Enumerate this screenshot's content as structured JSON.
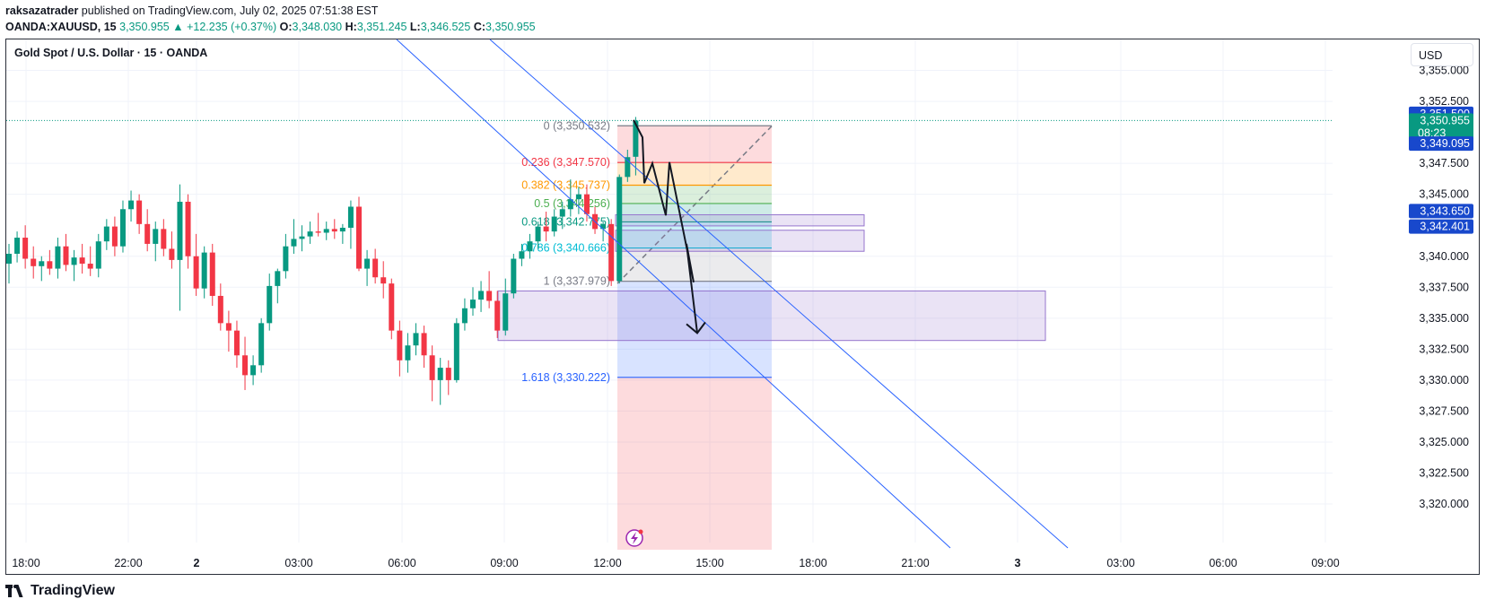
{
  "header": {
    "author": "raksazatrader",
    "published": "published on TradingView.com, July 02, 2025 07:51:38 EST"
  },
  "quote": {
    "symbol": "OANDA:XAUUSD, 15",
    "last": "3,350.955",
    "change": "▲ +12.235 (+0.37%)",
    "o_label": "O:",
    "o": "3,348.030",
    "h_label": "H:",
    "h": "3,351.245",
    "l_label": "L:",
    "l": "3,346.525",
    "c_label": "C:",
    "c": "3,350.955"
  },
  "chart_title": "Gold Spot / U.S. Dollar · 15 · OANDA",
  "currency": "USD",
  "footer": {
    "brand": "TradingView"
  },
  "colors": {
    "up": "#089981",
    "down": "#f23645",
    "trendline": "#2962ff",
    "zone": "#9575cd",
    "fib_red": "#f23645",
    "fib_orange": "#ff9800",
    "fib_green": "#4caf50",
    "fib_teal": "#089981",
    "fib_cyan": "#00bcd4",
    "fib_gray": "#787b86",
    "fib_blue": "#2962ff",
    "tag_blue": "#1848cc"
  },
  "chart_data": {
    "type": "candlestick",
    "y_ticks": [
      "3,355.000",
      "3,352.500",
      "3,347.500",
      "3,345.000",
      "3,340.000",
      "3,337.500",
      "3,335.000",
      "3,332.500",
      "3,330.000",
      "3,327.500",
      "3,325.000",
      "3,322.500",
      "3,320.000"
    ],
    "y_tick_values": [
      3355.0,
      3352.5,
      3347.5,
      3345.0,
      3340.0,
      3337.5,
      3335.0,
      3332.5,
      3330.0,
      3327.5,
      3325.0,
      3322.5,
      3320.0
    ],
    "ylim": [
      3318.7,
      3357.5
    ],
    "x_ticks": [
      {
        "label": "18:00",
        "bold": false
      },
      {
        "label": "22:00",
        "bold": false
      },
      {
        "label": "2",
        "bold": true
      },
      {
        "label": "03:00",
        "bold": false
      },
      {
        "label": "06:00",
        "bold": false
      },
      {
        "label": "09:00",
        "bold": false
      },
      {
        "label": "12:00",
        "bold": false
      },
      {
        "label": "15:00",
        "bold": false
      },
      {
        "label": "18:00",
        "bold": false
      },
      {
        "label": "21:00",
        "bold": false
      },
      {
        "label": "3",
        "bold": true
      },
      {
        "label": "03:00",
        "bold": false
      },
      {
        "label": "06:00",
        "bold": false
      },
      {
        "label": "09:00",
        "bold": false
      }
    ],
    "candles": [
      {
        "o": 3339.4,
        "h": 3341.0,
        "l": 3337.8,
        "c": 3340.2
      },
      {
        "o": 3340.2,
        "h": 3342.0,
        "l": 3339.5,
        "c": 3341.5
      },
      {
        "o": 3341.5,
        "h": 3342.5,
        "l": 3339.0,
        "c": 3339.8
      },
      {
        "o": 3339.8,
        "h": 3340.8,
        "l": 3338.2,
        "c": 3339.2
      },
      {
        "o": 3339.2,
        "h": 3340.0,
        "l": 3338.0,
        "c": 3339.6
      },
      {
        "o": 3339.6,
        "h": 3340.5,
        "l": 3338.5,
        "c": 3339.0
      },
      {
        "o": 3339.0,
        "h": 3341.5,
        "l": 3338.2,
        "c": 3340.8
      },
      {
        "o": 3340.8,
        "h": 3341.8,
        "l": 3338.8,
        "c": 3339.3
      },
      {
        "o": 3339.3,
        "h": 3340.5,
        "l": 3338.0,
        "c": 3339.9
      },
      {
        "o": 3339.9,
        "h": 3341.0,
        "l": 3338.6,
        "c": 3339.4
      },
      {
        "o": 3339.4,
        "h": 3340.8,
        "l": 3338.4,
        "c": 3339.0
      },
      {
        "o": 3339.0,
        "h": 3341.8,
        "l": 3338.3,
        "c": 3341.2
      },
      {
        "o": 3341.2,
        "h": 3343.0,
        "l": 3340.5,
        "c": 3342.4
      },
      {
        "o": 3342.4,
        "h": 3343.2,
        "l": 3340.0,
        "c": 3340.8
      },
      {
        "o": 3340.8,
        "h": 3344.5,
        "l": 3340.3,
        "c": 3343.8
      },
      {
        "o": 3343.8,
        "h": 3345.3,
        "l": 3342.8,
        "c": 3344.5
      },
      {
        "o": 3344.5,
        "h": 3345.0,
        "l": 3341.8,
        "c": 3342.6
      },
      {
        "o": 3342.6,
        "h": 3343.8,
        "l": 3340.4,
        "c": 3341.0
      },
      {
        "o": 3341.0,
        "h": 3342.8,
        "l": 3339.6,
        "c": 3342.2
      },
      {
        "o": 3342.2,
        "h": 3343.0,
        "l": 3340.0,
        "c": 3340.6
      },
      {
        "o": 3340.6,
        "h": 3342.0,
        "l": 3339.0,
        "c": 3339.7
      },
      {
        "o": 3339.7,
        "h": 3345.8,
        "l": 3335.6,
        "c": 3344.4
      },
      {
        "o": 3344.4,
        "h": 3345.0,
        "l": 3339.0,
        "c": 3340.0
      },
      {
        "o": 3340.0,
        "h": 3341.8,
        "l": 3336.8,
        "c": 3337.4
      },
      {
        "o": 3337.4,
        "h": 3340.8,
        "l": 3336.6,
        "c": 3340.3
      },
      {
        "o": 3340.3,
        "h": 3341.0,
        "l": 3336.0,
        "c": 3336.8
      },
      {
        "o": 3336.8,
        "h": 3337.8,
        "l": 3334.0,
        "c": 3334.6
      },
      {
        "o": 3334.6,
        "h": 3335.6,
        "l": 3332.3,
        "c": 3334.0
      },
      {
        "o": 3334.0,
        "h": 3334.8,
        "l": 3331.0,
        "c": 3332.0
      },
      {
        "o": 3332.0,
        "h": 3333.5,
        "l": 3329.2,
        "c": 3330.4
      },
      {
        "o": 3330.4,
        "h": 3332.0,
        "l": 3329.6,
        "c": 3331.2
      },
      {
        "o": 3331.2,
        "h": 3335.0,
        "l": 3330.6,
        "c": 3334.6
      },
      {
        "o": 3334.6,
        "h": 3338.6,
        "l": 3334.0,
        "c": 3337.6
      },
      {
        "o": 3337.6,
        "h": 3339.0,
        "l": 3336.2,
        "c": 3338.8
      },
      {
        "o": 3338.8,
        "h": 3341.8,
        "l": 3338.2,
        "c": 3340.8
      },
      {
        "o": 3340.8,
        "h": 3343.0,
        "l": 3340.2,
        "c": 3341.4
      },
      {
        "o": 3341.4,
        "h": 3342.5,
        "l": 3340.4,
        "c": 3341.6
      },
      {
        "o": 3341.6,
        "h": 3342.8,
        "l": 3341.0,
        "c": 3342.0
      },
      {
        "o": 3342.0,
        "h": 3343.5,
        "l": 3341.6,
        "c": 3341.9
      },
      {
        "o": 3341.9,
        "h": 3342.8,
        "l": 3341.3,
        "c": 3342.2
      },
      {
        "o": 3342.2,
        "h": 3343.0,
        "l": 3341.4,
        "c": 3342.0
      },
      {
        "o": 3342.0,
        "h": 3342.6,
        "l": 3341.0,
        "c": 3342.3
      },
      {
        "o": 3342.3,
        "h": 3344.5,
        "l": 3340.6,
        "c": 3344.0
      },
      {
        "o": 3344.0,
        "h": 3344.8,
        "l": 3338.8,
        "c": 3339.0
      },
      {
        "o": 3339.0,
        "h": 3340.5,
        "l": 3337.6,
        "c": 3339.8
      },
      {
        "o": 3339.8,
        "h": 3340.6,
        "l": 3337.8,
        "c": 3338.3
      },
      {
        "o": 3338.3,
        "h": 3339.6,
        "l": 3336.6,
        "c": 3337.8
      },
      {
        "o": 3337.8,
        "h": 3338.2,
        "l": 3333.3,
        "c": 3334.0
      },
      {
        "o": 3334.0,
        "h": 3334.8,
        "l": 3330.3,
        "c": 3331.6
      },
      {
        "o": 3331.6,
        "h": 3333.8,
        "l": 3330.6,
        "c": 3332.8
      },
      {
        "o": 3332.8,
        "h": 3334.6,
        "l": 3332.0,
        "c": 3333.8
      },
      {
        "o": 3333.8,
        "h": 3334.4,
        "l": 3331.0,
        "c": 3332.0
      },
      {
        "o": 3332.0,
        "h": 3332.8,
        "l": 3328.3,
        "c": 3330.0
      },
      {
        "o": 3330.0,
        "h": 3331.8,
        "l": 3328.0,
        "c": 3331.0
      },
      {
        "o": 3331.0,
        "h": 3331.6,
        "l": 3328.8,
        "c": 3330.0
      },
      {
        "o": 3330.0,
        "h": 3335.0,
        "l": 3329.8,
        "c": 3334.6
      },
      {
        "o": 3334.6,
        "h": 3336.6,
        "l": 3334.0,
        "c": 3335.8
      },
      {
        "o": 3335.8,
        "h": 3337.5,
        "l": 3335.2,
        "c": 3336.5
      },
      {
        "o": 3336.5,
        "h": 3338.0,
        "l": 3335.5,
        "c": 3337.2
      },
      {
        "o": 3337.2,
        "h": 3338.8,
        "l": 3335.8,
        "c": 3336.4
      },
      {
        "o": 3336.4,
        "h": 3337.2,
        "l": 3333.4,
        "c": 3334.0
      },
      {
        "o": 3334.0,
        "h": 3338.2,
        "l": 3333.6,
        "c": 3337.0
      },
      {
        "o": 3337.0,
        "h": 3340.2,
        "l": 3336.6,
        "c": 3339.8
      },
      {
        "o": 3339.8,
        "h": 3341.0,
        "l": 3339.2,
        "c": 3340.4
      },
      {
        "o": 3340.4,
        "h": 3341.8,
        "l": 3339.8,
        "c": 3341.2
      },
      {
        "o": 3341.2,
        "h": 3342.8,
        "l": 3340.6,
        "c": 3342.4
      },
      {
        "o": 3342.4,
        "h": 3343.6,
        "l": 3341.2,
        "c": 3342.0
      },
      {
        "o": 3342.0,
        "h": 3343.8,
        "l": 3341.6,
        "c": 3343.2
      },
      {
        "o": 3343.2,
        "h": 3344.4,
        "l": 3342.2,
        "c": 3343.8
      },
      {
        "o": 3343.8,
        "h": 3346.2,
        "l": 3343.2,
        "c": 3344.6
      },
      {
        "o": 3344.6,
        "h": 3345.6,
        "l": 3343.4,
        "c": 3345.0
      },
      {
        "o": 3345.0,
        "h": 3345.8,
        "l": 3342.8,
        "c": 3343.4
      },
      {
        "o": 3343.4,
        "h": 3344.0,
        "l": 3341.8,
        "c": 3342.2
      },
      {
        "o": 3342.2,
        "h": 3342.8,
        "l": 3341.2,
        "c": 3342.6
      },
      {
        "o": 3342.6,
        "h": 3343.0,
        "l": 3337.6,
        "c": 3338.0
      },
      {
        "o": 3338.0,
        "h": 3346.6,
        "l": 3337.8,
        "c": 3346.4
      },
      {
        "o": 3346.4,
        "h": 3348.6,
        "l": 3346.0,
        "c": 3348.0
      },
      {
        "o": 3348.03,
        "h": 3351.245,
        "l": 3346.525,
        "c": 3350.955
      }
    ],
    "fib": [
      {
        "label": "0 (3,350.532)",
        "value": 3350.532,
        "color": "#787b86"
      },
      {
        "label": "0.236 (3,347.570)",
        "value": 3347.57,
        "color": "#f23645"
      },
      {
        "label": "0.382 (3,345.737)",
        "value": 3345.737,
        "color": "#ff9800"
      },
      {
        "label": "0.5 (3,344.256)",
        "value": 3344.256,
        "color": "#4caf50"
      },
      {
        "label": "0.618 (3,342.775)",
        "value": 3342.775,
        "color": "#089981"
      },
      {
        "label": "0.786 (3,340.666)",
        "value": 3340.666,
        "color": "#00bcd4"
      },
      {
        "label": "1 (3,337.979)",
        "value": 3337.979,
        "color": "#787b86"
      },
      {
        "label": "1.618 (3,330.222)",
        "value": 3330.222,
        "color": "#2962ff"
      }
    ],
    "zones": [
      {
        "top": 3343.35,
        "bottom": 3342.45
      },
      {
        "top": 3342.1,
        "bottom": 3340.4
      },
      {
        "top": 3337.2,
        "bottom": 3333.2
      }
    ],
    "path_prices": [
      3351.0,
      3349.6,
      3345.9,
      3347.5,
      3343.3,
      3347.6,
      3337.9,
      3341.0,
      3333.8
    ],
    "price_tags": [
      {
        "label": "3,351.500",
        "value": 3351.5,
        "color": "#1848cc"
      },
      {
        "label": "3,350.955",
        "value": 3350.955,
        "color": "#089981",
        "sub": "08:23"
      },
      {
        "label": "3,349.095",
        "value": 3349.095,
        "color": "#1848cc"
      },
      {
        "label": "3,343.650",
        "value": 3343.65,
        "color": "#1848cc"
      },
      {
        "label": "3,342.401",
        "value": 3342.401,
        "color": "#1848cc"
      }
    ],
    "last_price": 3350.955
  }
}
